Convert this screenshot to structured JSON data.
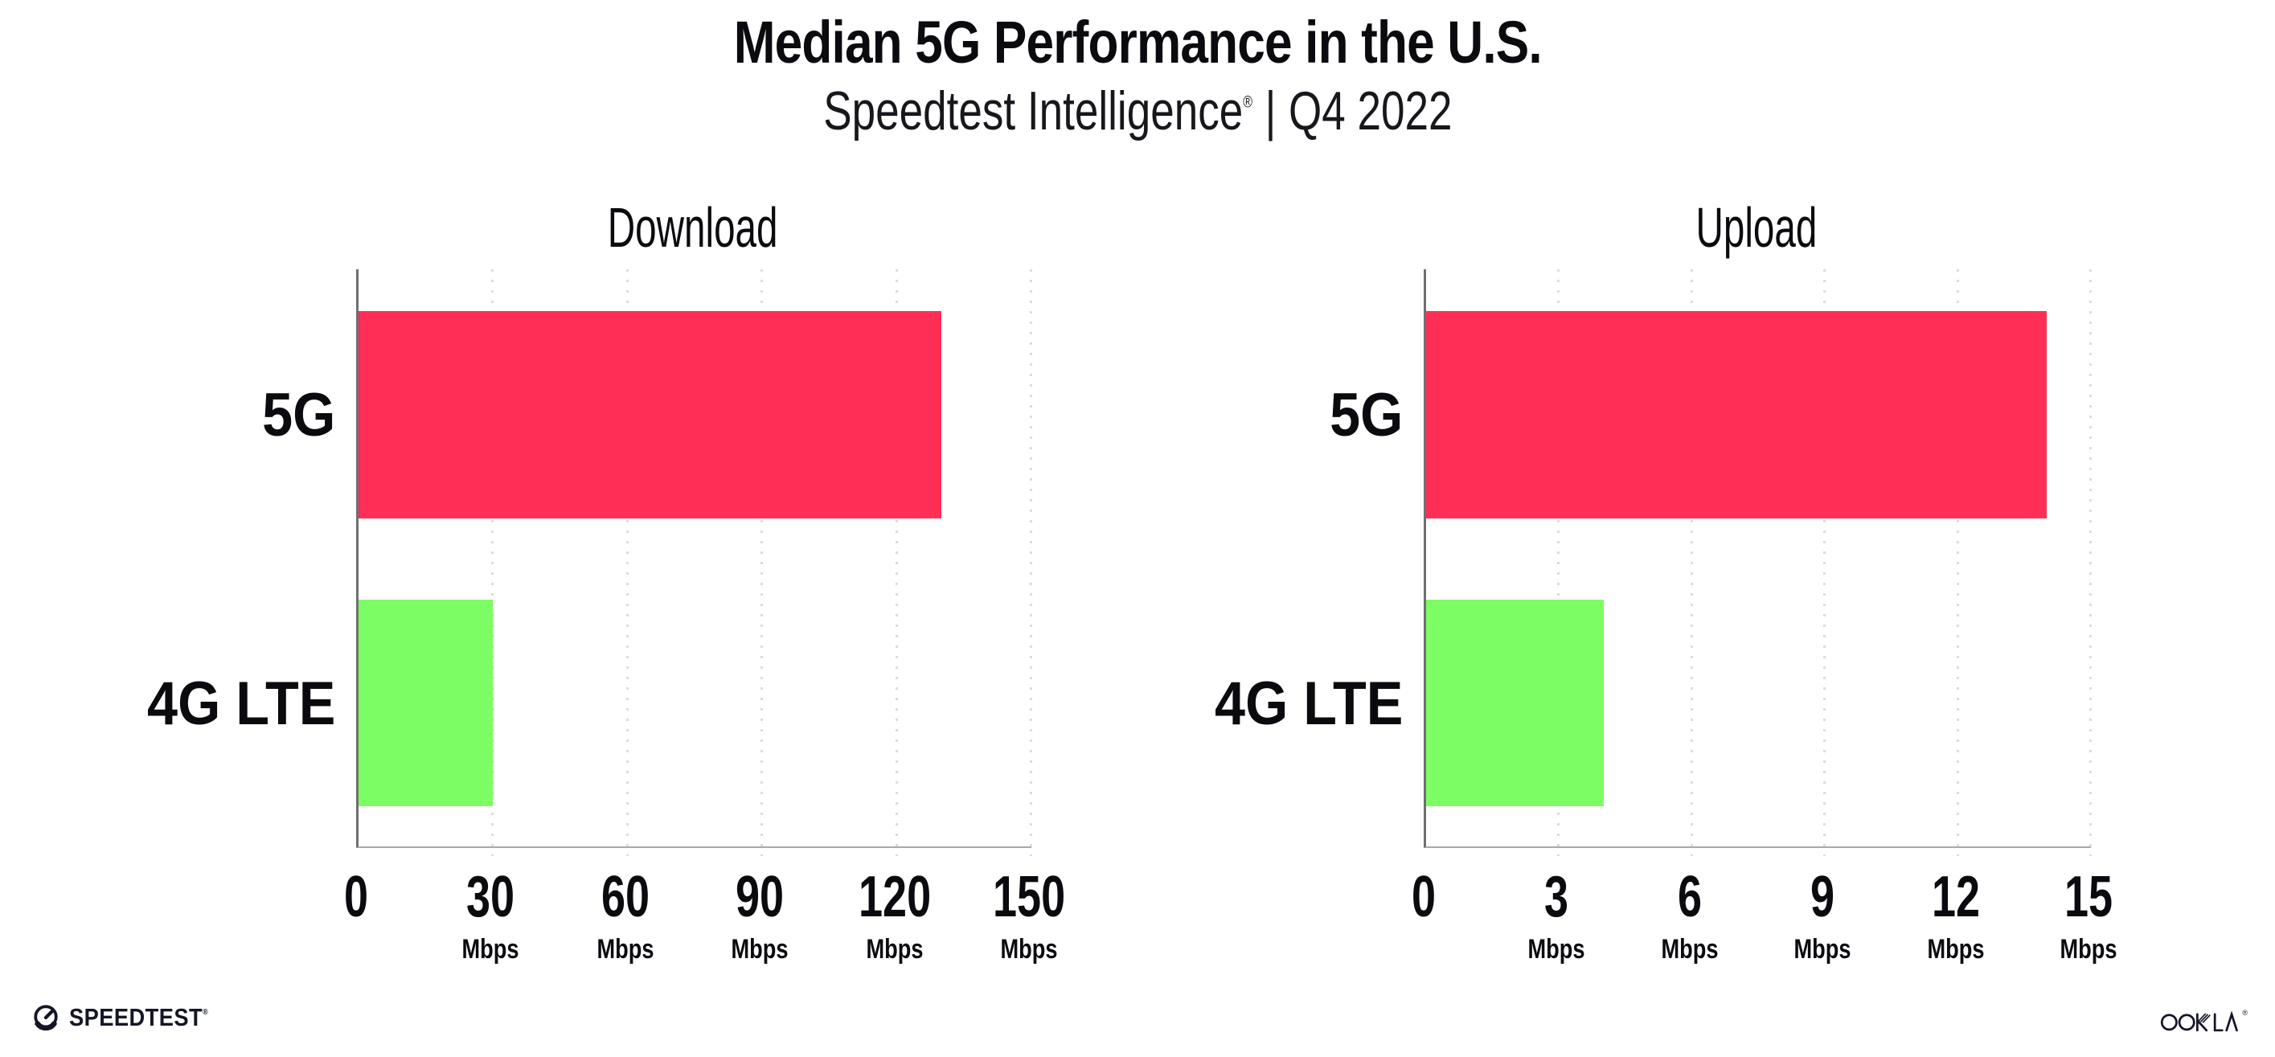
{
  "header": {
    "title": "Median 5G Performance in the U.S.",
    "subtitle": {
      "brand": "Speedtest Intelligence",
      "reg": "®",
      "separator": "|",
      "period": "Q4 2022"
    }
  },
  "chart_data": [
    {
      "type": "bar",
      "orientation": "horizontal",
      "title": "Download",
      "unit": "Mbps",
      "categories": [
        "5G",
        "4G LTE"
      ],
      "values": [
        130,
        30
      ],
      "xlim": [
        0,
        150
      ],
      "xticks": [
        0,
        30,
        60,
        90,
        120,
        150
      ],
      "bar_colors": [
        "#FF2E56",
        "#7DFD64"
      ],
      "grid": "vertical-dotted",
      "legend_position": "none"
    },
    {
      "type": "bar",
      "orientation": "horizontal",
      "title": "Upload",
      "unit": "Mbps",
      "categories": [
        "5G",
        "4G LTE"
      ],
      "values": [
        14,
        4
      ],
      "xlim": [
        0,
        15
      ],
      "xticks": [
        0,
        3,
        6,
        9,
        12,
        15
      ],
      "bar_colors": [
        "#FF2E56",
        "#7DFD64"
      ],
      "grid": "vertical-dotted",
      "legend_position": "none"
    }
  ],
  "footer": {
    "speedtest": {
      "label": "SPEEDTEST",
      "reg": "®"
    },
    "ookla": {
      "label": "OOKLA",
      "reg": "®"
    }
  },
  "colors": {
    "bar_5g": "#FF2E56",
    "bar_4g_lte": "#7DFD64",
    "text": "#0B0B0F",
    "grid_dots": "#DBDBE6",
    "axis": "#8F8F8F",
    "logo": "#141526"
  }
}
